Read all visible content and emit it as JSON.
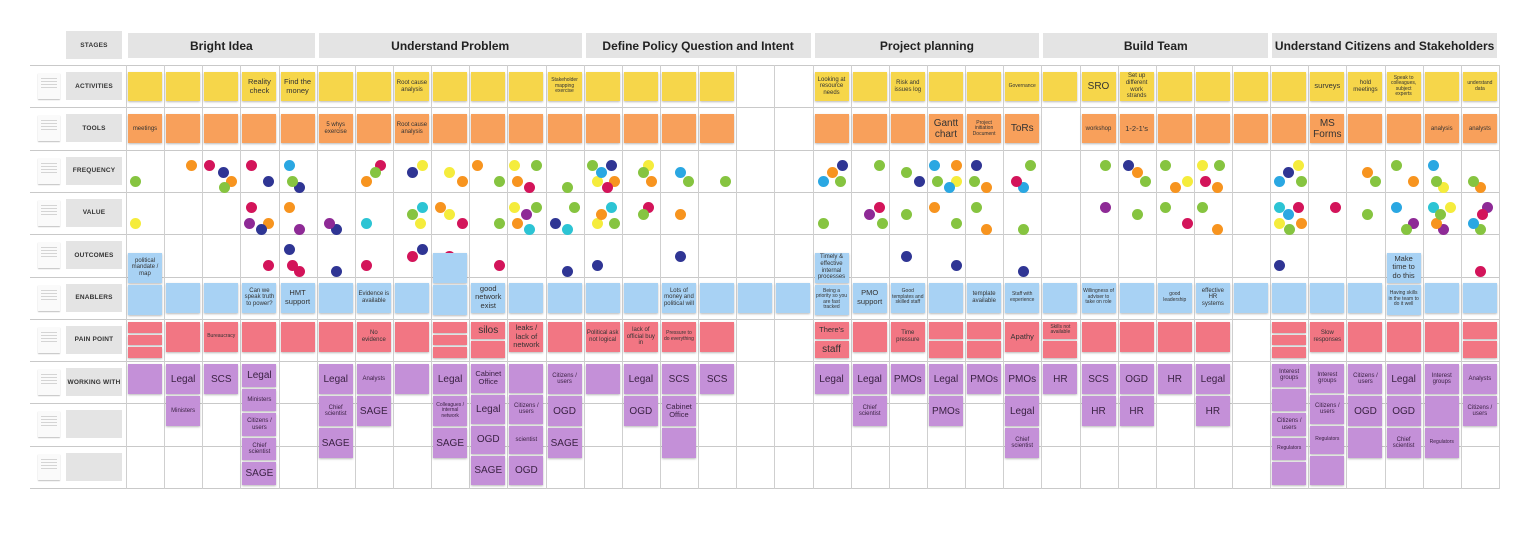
{
  "board": {
    "stages_label": "STAGES",
    "row_labels": [
      "ACTIVITIES",
      "TOOLS",
      "FREQUENCY",
      "VALUE",
      "OUTCOMES",
      "ENABLERS",
      "PAIN POINT",
      "WORKING WITH",
      "",
      ""
    ],
    "stages": [
      {
        "title": "Bright Idea",
        "columns": 5
      },
      {
        "title": "Understand Problem",
        "columns": 7
      },
      {
        "title": "Define Policy Question and Intent",
        "columns": 6
      },
      {
        "title": "Project planning",
        "columns": 6
      },
      {
        "title": "Build Team",
        "columns": 6
      },
      {
        "title": "Understand Citizens and Stakeholders",
        "columns": 6
      }
    ]
  },
  "colors": {
    "green": "#86c440",
    "orange": "#f7941f",
    "navy": "#2f3594",
    "magenta": "#d3145a",
    "yellow": "#f5ec3c",
    "blue": "#2aa7e2",
    "purple": "#8e2a96",
    "cyan": "#2cc4d4",
    "activity_note": "#f6d64a",
    "tool_note": "#f8a05b",
    "enabler_note": "#a8d2f4",
    "pain_note": "#f27683",
    "working_with_note": "#c490d8"
  },
  "columns": [
    {
      "activity": "",
      "tool": "meetings",
      "frequency": [
        "green"
      ],
      "value": [
        "yellow"
      ],
      "outcomes": [],
      "enablers": [
        "political mandate / map",
        ""
      ],
      "pain_points": [
        "",
        "",
        ""
      ],
      "working_with": [
        ""
      ]
    },
    {
      "activity": "",
      "tool": "",
      "frequency": [
        "orange"
      ],
      "value": [],
      "outcomes": [],
      "enablers": [
        ""
      ],
      "pain_points": [
        ""
      ],
      "working_with": [
        "Legal",
        "Ministers"
      ]
    },
    {
      "activity": "",
      "tool": "",
      "frequency": [
        "navy",
        "orange",
        "magenta",
        "green"
      ],
      "value": [],
      "outcomes": [],
      "enablers": [
        ""
      ],
      "pain_points": [
        "Bureaucracy"
      ],
      "working_with": [
        "SCS"
      ]
    },
    {
      "activity": "Reality check",
      "tool": "",
      "frequency": [
        "navy",
        "magenta"
      ],
      "value": [
        "orange",
        "magenta",
        "navy",
        "purple"
      ],
      "outcomes": [
        "magenta"
      ],
      "enablers": [
        "Can we speak truth to power?"
      ],
      "pain_points": [
        ""
      ],
      "working_with": [
        "Legal",
        "Ministers",
        "Citizens / users",
        "Chief scientist",
        "SAGE"
      ]
    },
    {
      "activity": "Find the money",
      "tool": "",
      "frequency": [
        "blue",
        "navy",
        "green"
      ],
      "value": [
        "orange",
        "purple"
      ],
      "outcomes": [
        "navy",
        "magenta",
        "magenta"
      ],
      "enablers": [
        "HMT support"
      ],
      "pain_points": [
        ""
      ],
      "working_with": []
    },
    {
      "activity": "",
      "tool": "5 whys exercise",
      "frequency": [],
      "value": [
        "navy",
        "purple"
      ],
      "outcomes": [
        "navy"
      ],
      "enablers": [
        ""
      ],
      "pain_points": [
        ""
      ],
      "working_with": [
        "Legal",
        "Chief scientist",
        "SAGE"
      ]
    },
    {
      "activity": "",
      "tool": "",
      "frequency": [
        "orange",
        "magenta",
        "green"
      ],
      "value": [
        "cyan"
      ],
      "outcomes": [
        "magenta"
      ],
      "enablers": [
        "Evidence is available"
      ],
      "pain_points": [
        "No evidence"
      ],
      "working_with": [
        "Analysts",
        "SAGE"
      ]
    },
    {
      "activity": "Root cause analysis",
      "tool": "Root cause analysis",
      "frequency": [
        "yellow",
        "navy"
      ],
      "value": [
        "cyan",
        "green",
        "yellow"
      ],
      "outcomes": [
        "navy",
        "magenta"
      ],
      "enablers": [
        ""
      ],
      "pain_points": [
        ""
      ],
      "working_with": [
        ""
      ]
    },
    {
      "activity": "",
      "tool": "",
      "frequency": [
        "yellow",
        "orange"
      ],
      "value": [
        "yellow",
        "magenta",
        "orange"
      ],
      "outcomes": [
        "magenta"
      ],
      "enablers": [
        "",
        ""
      ],
      "pain_points": [
        "",
        "",
        ""
      ],
      "working_with": [
        "Legal",
        "Colleagues / internal network",
        "SAGE"
      ]
    },
    {
      "activity": "",
      "tool": "",
      "frequency": [
        "green",
        "orange"
      ],
      "value": [
        "green"
      ],
      "outcomes": [
        "magenta"
      ],
      "enablers": [
        "good network exist"
      ],
      "pain_points": [
        "silos",
        ""
      ],
      "working_with": [
        "Cabinet Office",
        "Legal",
        "OGD",
        "SAGE"
      ]
    },
    {
      "activity": "",
      "tool": "",
      "frequency": [
        "yellow",
        "magenta",
        "orange",
        "green"
      ],
      "value": [
        "yellow",
        "cyan",
        "orange",
        "green",
        "purple"
      ],
      "outcomes": [],
      "enablers": [
        ""
      ],
      "pain_points": [
        "leaks / lack of network"
      ],
      "working_with": [
        "",
        "Citizens / users",
        "scientist",
        "OGD"
      ]
    },
    {
      "activity": "Stakeholder mapping exercise",
      "tool": "",
      "frequency": [
        "green"
      ],
      "value": [
        "cyan",
        "navy",
        "green"
      ],
      "outcomes": [
        "navy"
      ],
      "enablers": [
        ""
      ],
      "pain_points": [
        ""
      ],
      "working_with": [
        "Citizens / users",
        "OGD",
        "SAGE"
      ]
    },
    {
      "activity": "",
      "tool": "",
      "frequency": [
        "yellow",
        "navy",
        "blue",
        "orange",
        "green",
        "magenta"
      ],
      "value": [
        "yellow",
        "cyan",
        "orange",
        "green"
      ],
      "outcomes": [
        "navy"
      ],
      "enablers": [
        ""
      ],
      "pain_points": [
        "Political ask not logical"
      ],
      "working_with": [
        ""
      ]
    },
    {
      "activity": "",
      "tool": "",
      "frequency": [
        "yellow",
        "green",
        "orange"
      ],
      "value": [
        "magenta",
        "green"
      ],
      "outcomes": [],
      "enablers": [
        ""
      ],
      "pain_points": [
        "lack of official buy in"
      ],
      "working_with": [
        "Legal",
        "OGD"
      ]
    },
    {
      "activity": "",
      "tool": "",
      "frequency": [
        "blue",
        "green"
      ],
      "value": [
        "orange"
      ],
      "outcomes": [
        "navy"
      ],
      "enablers": [
        "Lots of money and political will"
      ],
      "pain_points": [
        "Pressure to do everything"
      ],
      "working_with": [
        "SCS",
        "Cabinet Office",
        ""
      ]
    },
    {
      "activity": "",
      "tool": "",
      "frequency": [
        "green"
      ],
      "value": [],
      "outcomes": [],
      "enablers": [
        ""
      ],
      "pain_points": [
        ""
      ],
      "working_with": [
        "SCS"
      ]
    },
    {
      "activity": null,
      "tool": null,
      "frequency": [],
      "value": [],
      "outcomes": [],
      "enablers": [
        ""
      ],
      "pain_points": [],
      "working_with": []
    },
    {
      "activity": null,
      "tool": null,
      "frequency": [],
      "value": [],
      "outcomes": [],
      "enablers": [
        ""
      ],
      "pain_points": [],
      "working_with": []
    },
    {
      "activity": "Looking at resource needs",
      "tool": "",
      "frequency": [
        "blue",
        "navy",
        "orange",
        "green"
      ],
      "value": [
        "green"
      ],
      "outcomes": [],
      "enablers": [
        "Timely & effective internal processes",
        "Being a priority so you are fast tracked"
      ],
      "pain_points": [
        "There's",
        "staff"
      ],
      "working_with": [
        "Legal"
      ]
    },
    {
      "activity": "",
      "tool": "",
      "frequency": [
        "green"
      ],
      "value": [
        "magenta",
        "purple",
        "green"
      ],
      "outcomes": [],
      "enablers": [
        "PMO support"
      ],
      "pain_points": [
        ""
      ],
      "working_with": [
        "Legal",
        "Chief scientist"
      ]
    },
    {
      "activity": "Risk and issues log",
      "tool": "",
      "frequency": [
        "green",
        "navy"
      ],
      "value": [
        "green"
      ],
      "outcomes": [
        "navy"
      ],
      "enablers": [
        "Good templates and skilled staff"
      ],
      "pain_points": [
        "Time pressure"
      ],
      "working_with": [
        "PMOs"
      ]
    },
    {
      "activity": "",
      "tool": "Gantt chart",
      "frequency": [
        "yellow",
        "blue",
        "blue",
        "green",
        "orange"
      ],
      "value": [
        "green",
        "orange"
      ],
      "outcomes": [
        "navy"
      ],
      "enablers": [
        ""
      ],
      "pain_points": [
        "",
        ""
      ],
      "working_with": [
        "Legal",
        "PMOs"
      ]
    },
    {
      "activity": "",
      "tool": "Project initiation Document",
      "frequency": [
        "navy",
        "orange",
        "green"
      ],
      "value": [
        "green",
        "orange"
      ],
      "outcomes": [],
      "enablers": [
        "template available"
      ],
      "pain_points": [
        "",
        ""
      ],
      "working_with": [
        "PMOs"
      ]
    },
    {
      "activity": "Governance",
      "tool": "ToRs",
      "frequency": [
        "blue",
        "magenta",
        "green"
      ],
      "value": [
        "green"
      ],
      "outcomes": [
        "navy"
      ],
      "enablers": [
        "Staff with experience"
      ],
      "pain_points": [
        "Apathy"
      ],
      "working_with": [
        "PMOs",
        "Legal",
        "Chief scientist"
      ]
    },
    {
      "activity": "",
      "tool": null,
      "frequency": [],
      "value": [],
      "outcomes": [],
      "enablers": [
        ""
      ],
      "pain_points": [
        "Skills not available",
        ""
      ],
      "working_with": [
        "HR"
      ]
    },
    {
      "activity": "SRO",
      "tool": "workshop",
      "frequency": [
        "green"
      ],
      "value": [
        "purple"
      ],
      "outcomes": [],
      "enablers": [
        "Willingness of adviser to take on role"
      ],
      "pain_points": [
        ""
      ],
      "working_with": [
        "SCS",
        "HR"
      ]
    },
    {
      "activity": "Set up different work strands",
      "tool": "1-2-1's",
      "frequency": [
        "orange",
        "green",
        "navy"
      ],
      "value": [
        "green"
      ],
      "outcomes": [],
      "enablers": [
        ""
      ],
      "pain_points": [
        ""
      ],
      "working_with": [
        "OGD",
        "HR"
      ]
    },
    {
      "activity": "",
      "tool": "",
      "frequency": [
        "yellow",
        "green",
        "orange"
      ],
      "value": [
        "magenta",
        "green"
      ],
      "outcomes": [],
      "enablers": [
        "good leadership"
      ],
      "pain_points": [
        ""
      ],
      "working_with": [
        "HR"
      ]
    },
    {
      "activity": "",
      "tool": "",
      "frequency": [
        "yellow",
        "orange",
        "magenta",
        "green"
      ],
      "value": [
        "green",
        "orange"
      ],
      "outcomes": [],
      "enablers": [
        "effective HR systems"
      ],
      "pain_points": [
        ""
      ],
      "working_with": [
        "Legal",
        "HR"
      ]
    },
    {
      "activity": "",
      "tool": "",
      "frequency": [],
      "value": [],
      "outcomes": [],
      "enablers": [
        ""
      ],
      "pain_points": [],
      "working_with": []
    },
    {
      "activity": "",
      "tool": "",
      "frequency": [
        "blue",
        "yellow",
        "navy",
        "green"
      ],
      "value": [
        "yellow",
        "magenta",
        "blue",
        "orange",
        "cyan",
        "green"
      ],
      "outcomes": [
        "navy"
      ],
      "enablers": [
        ""
      ],
      "pain_points": [
        "",
        "",
        ""
      ],
      "working_with": [
        "Interest groups",
        "",
        "Citizens / users",
        "Regulators",
        ""
      ]
    },
    {
      "activity": "surveys",
      "tool": "MS Forms",
      "frequency": [],
      "value": [
        "magenta"
      ],
      "outcomes": [],
      "enablers": [
        ""
      ],
      "pain_points": [
        "Slow responses"
      ],
      "working_with": [
        "Interest groups",
        "Citizens / users",
        "Regulators",
        ""
      ]
    },
    {
      "activity": "hold meetings",
      "tool": "",
      "frequency": [
        "orange",
        "green"
      ],
      "value": [
        "green"
      ],
      "outcomes": [],
      "enablers": [
        ""
      ],
      "pain_points": [
        ""
      ],
      "working_with": [
        "Citizens / users",
        "OGD",
        ""
      ]
    },
    {
      "activity": "Speak to colleagues, subject experts",
      "tool": "",
      "frequency": [
        "orange",
        "green"
      ],
      "value": [
        "purple",
        "blue",
        "green"
      ],
      "outcomes": [
        "magenta"
      ],
      "enablers": [
        "Make time to do this",
        "Having skills in the team to do it well"
      ],
      "pain_points": [
        ""
      ],
      "working_with": [
        "Legal",
        "OGD",
        "Chief scientist"
      ]
    },
    {
      "activity": "",
      "tool": "analysis",
      "frequency": [
        "blue",
        "yellow",
        "green"
      ],
      "value": [
        "cyan",
        "purple",
        "orange",
        "yellow",
        "green"
      ],
      "outcomes": [],
      "enablers": [
        ""
      ],
      "pain_points": [
        ""
      ],
      "working_with": [
        "Interest groups",
        "",
        "Regulators"
      ]
    },
    {
      "activity": "understand data",
      "tool": "analysts",
      "frequency": [
        "orange",
        "green"
      ],
      "value": [
        "green",
        "blue",
        "purple",
        "magenta"
      ],
      "outcomes": [
        "magenta"
      ],
      "enablers": [
        ""
      ],
      "pain_points": [
        "",
        ""
      ],
      "working_with": [
        "Analysts",
        "Citizens / users"
      ]
    }
  ]
}
